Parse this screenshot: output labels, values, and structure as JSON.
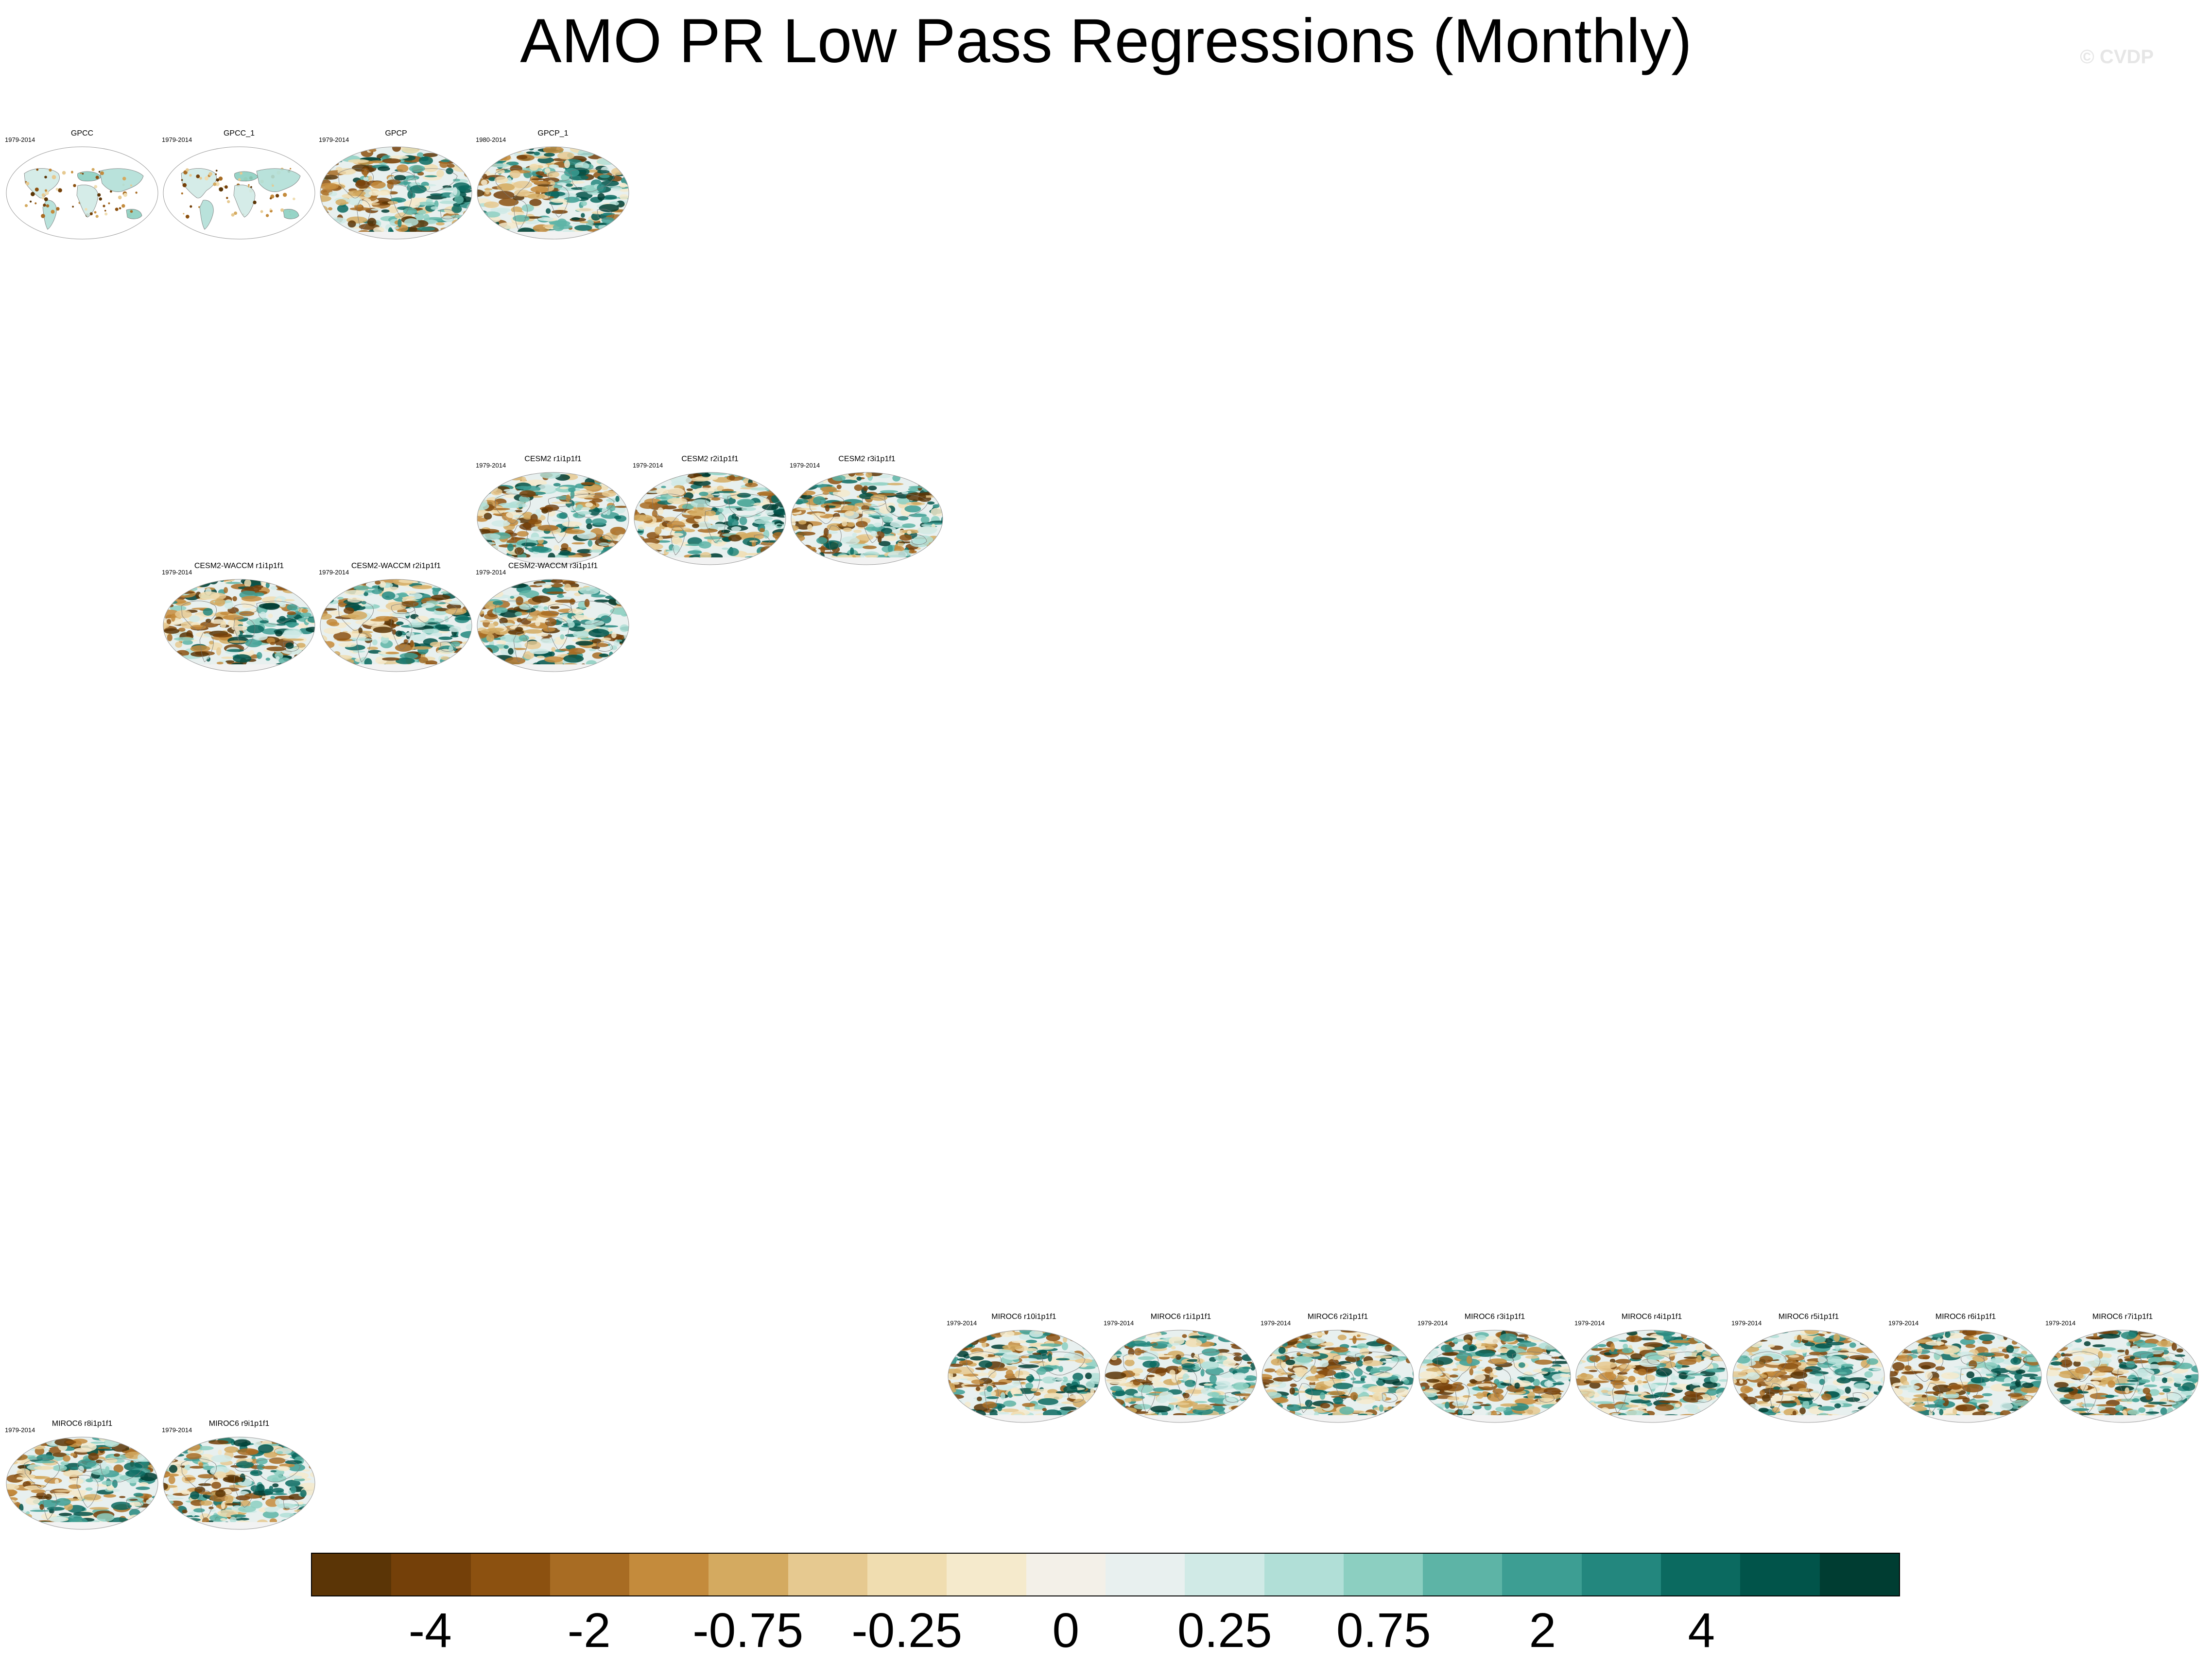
{
  "header": {
    "title": "AMO PR Low Pass Regressions (Monthly)",
    "watermark": "© CVDP"
  },
  "chart_data": {
    "type": "heatmap",
    "title": "AMO PR Low Pass Regressions (Monthly)",
    "panels": [
      {
        "name": "GPCC",
        "years": "1979-2014",
        "mask": "land"
      },
      {
        "name": "GPCC_1",
        "years": "1979-2014",
        "mask": "land"
      },
      {
        "name": "GPCP",
        "years": "1979-2014",
        "mask": "global"
      },
      {
        "name": "GPCP_1",
        "years": "1980-2014",
        "mask": "global"
      },
      {
        "name": "CESM2 r1i1p1f1",
        "years": "1979-2014",
        "mask": "global"
      },
      {
        "name": "CESM2 r2i1p1f1",
        "years": "1979-2014",
        "mask": "global"
      },
      {
        "name": "CESM2 r3i1p1f1",
        "years": "1979-2014",
        "mask": "global"
      },
      {
        "name": "CESM2-WACCM r1i1p1f1",
        "years": "1979-2014",
        "mask": "global"
      },
      {
        "name": "CESM2-WACCM r2i1p1f1",
        "years": "1979-2014",
        "mask": "global"
      },
      {
        "name": "CESM2-WACCM r3i1p1f1",
        "years": "1979-2014",
        "mask": "global"
      },
      {
        "name": "MIROC6 r10i1p1f1",
        "years": "1979-2014",
        "mask": "global"
      },
      {
        "name": "MIROC6 r1i1p1f1",
        "years": "1979-2014",
        "mask": "global"
      },
      {
        "name": "MIROC6 r2i1p1f1",
        "years": "1979-2014",
        "mask": "global"
      },
      {
        "name": "MIROC6 r3i1p1f1",
        "years": "1979-2014",
        "mask": "global"
      },
      {
        "name": "MIROC6 r4i1p1f1",
        "years": "1979-2014",
        "mask": "global"
      },
      {
        "name": "MIROC6 r5i1p1f1",
        "years": "1979-2014",
        "mask": "global"
      },
      {
        "name": "MIROC6 r6i1p1f1",
        "years": "1979-2014",
        "mask": "global"
      },
      {
        "name": "MIROC6 r7i1p1f1",
        "years": "1979-2014",
        "mask": "global"
      },
      {
        "name": "MIROC6 r8i1p1f1",
        "years": "1979-2014",
        "mask": "global"
      },
      {
        "name": "MIROC6 r9i1p1f1",
        "years": "1979-2014",
        "mask": "global"
      }
    ],
    "colorbar": {
      "colors": [
        "#5b3506",
        "#744009",
        "#8c5110",
        "#a86c23",
        "#c48b3c",
        "#d4aa60",
        "#e6c990",
        "#f0ddb0",
        "#f5eacc",
        "#f3f0e8",
        "#e8f0ef",
        "#d0eae6",
        "#b1dfd7",
        "#8ccfc1",
        "#5db4a6",
        "#3d9e93",
        "#23877e",
        "#0b6a60",
        "#01544a",
        "#003d32"
      ],
      "tick_labels": [
        "-4",
        "-2",
        "-0.75",
        "-0.25",
        "0",
        "0.25",
        "0.75",
        "2",
        "4"
      ],
      "tick_boundaries": [
        2,
        4,
        6,
        8,
        10,
        12,
        14,
        16,
        18
      ]
    }
  }
}
